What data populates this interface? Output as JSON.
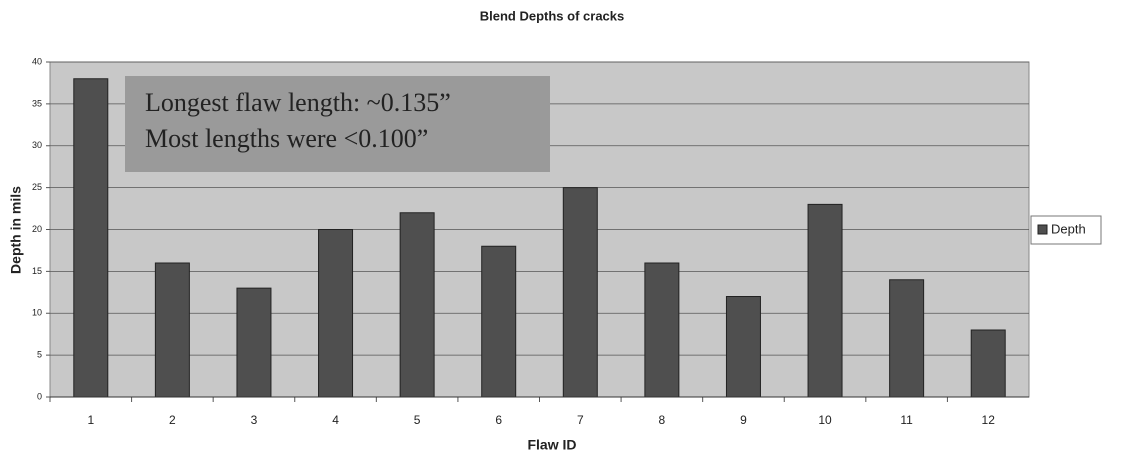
{
  "chart_data": {
    "type": "bar",
    "title": "Blend Depths of cracks",
    "x_label": "Flaw ID",
    "y_label": "Depth in mils",
    "categories": [
      "1",
      "2",
      "3",
      "4",
      "5",
      "6",
      "7",
      "8",
      "9",
      "10",
      "11",
      "12"
    ],
    "series": [
      {
        "name": "Depth",
        "color": "#4f4f4f",
        "values": [
          38,
          16,
          13,
          20,
          22,
          18,
          25,
          16,
          12,
          23,
          14,
          8
        ]
      }
    ],
    "ylim": [
      0,
      40
    ],
    "yticks": [
      0,
      5,
      10,
      15,
      20,
      25,
      30,
      35,
      40
    ],
    "grid": true,
    "legend": "right",
    "annotations": [
      "Longest flaw length: ~0.135”",
      "Most lengths were <0.100”"
    ]
  }
}
